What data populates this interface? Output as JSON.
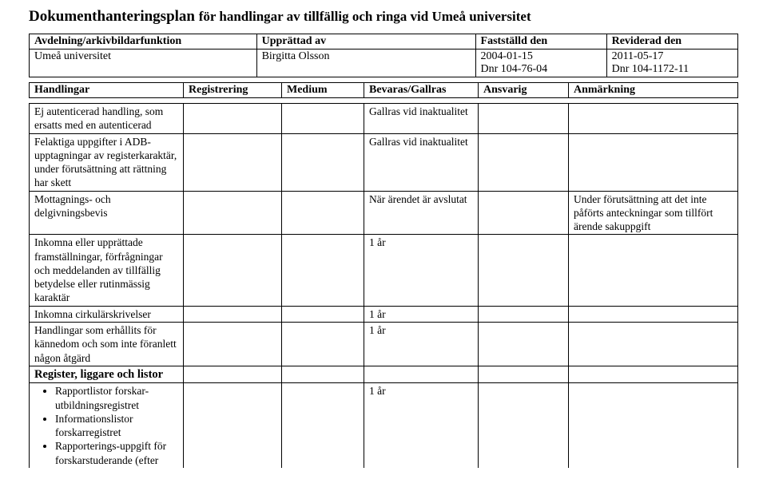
{
  "title_main": "Dokumenthanteringsplan",
  "title_sub": "för handlingar av tillfällig och ringa vid Umeå universitet",
  "meta": {
    "labels": {
      "avdelning": "Avdelning/arkivbildarfunktion",
      "upprattad": "Upprättad av",
      "faststalld": "Fastställd den",
      "reviderad": "Reviderad den"
    },
    "values": {
      "avdelning": "Umeå universitet",
      "upprattad": "Birgitta Olsson",
      "faststalld_l1": "2004-01-15",
      "faststalld_l2": "Dnr 104-76-04",
      "reviderad_l1": "2011-05-17",
      "reviderad_l2": "Dnr 104-1172-11"
    }
  },
  "cols": {
    "c1": "Handlingar",
    "c2": "Registrering",
    "c3": "Medium",
    "c4": "Bevaras/Gallras",
    "c5": "Ansvarig",
    "c6": "Anmärkning"
  },
  "rows": {
    "r1": {
      "desc": "Ej autenticerad handling, som ersatts med en autenticerad",
      "bev": "Gallras vid inaktualitet"
    },
    "r2": {
      "desc": "Felaktiga uppgifter i ADB-upptagningar av registerkaraktär, under förutsättning att rättning har skett",
      "bev": "Gallras vid inaktualitet"
    },
    "r3": {
      "desc": "Mottagnings- och delgivningsbevis",
      "bev": "När ärendet är avslutat",
      "anm": "Under förutsättning att det inte påförts anteckningar som tillfört ärende sakuppgift"
    },
    "r4": {
      "desc": "Inkomna eller upprättade framställningar, förfrågningar och meddelanden av tillfällig betydelse eller rutinmässig karaktär",
      "bev": "1 år"
    },
    "r5": {
      "desc": "Inkomna cirkulärskrivelser",
      "bev": "1 år"
    },
    "r6": {
      "desc": "Handlingar som erhållits för kännedom och som inte föranlett någon åtgärd",
      "bev": "1 år"
    },
    "section": "Register, liggare och listor",
    "b1": "Rapportlistor forskar-utbildningsregistret",
    "b2": "Informationslistor forskarregistret",
    "b3": "Rapporterings-uppgift för forskarstuderande (efter",
    "r7_bev": "1 år"
  }
}
